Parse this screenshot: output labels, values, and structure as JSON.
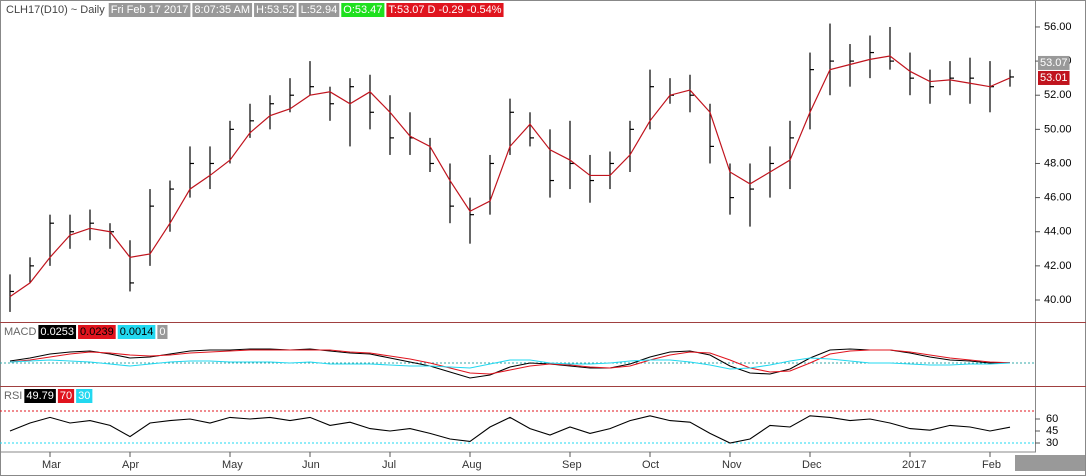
{
  "header": {
    "symbol": "CLH17(D10) ~ Daily",
    "date": "Fri Feb 17 2017",
    "time": "8:07:35 AM",
    "high": "H:53.52",
    "low": "L:52.94",
    "open": "O:53.47",
    "last": "T:53.07 D -0.29 -0.54%"
  },
  "chart_data": [
    {
      "type": "ohlc",
      "categories": [
        null,
        null,
        "Mar",
        null,
        null,
        null,
        "Apr",
        null,
        null,
        null,
        null,
        "May",
        null,
        null,
        null,
        "Jun",
        null,
        null,
        null,
        "Jul",
        null,
        null,
        null,
        "Aug",
        null,
        null,
        null,
        null,
        "Sep",
        null,
        null,
        null,
        "Oct",
        null,
        null,
        null,
        "Nov",
        null,
        null,
        null,
        "Dec",
        null,
        null,
        null,
        null,
        "2017",
        null,
        null,
        null,
        "Feb",
        null
      ],
      "high": [
        41.5,
        42.5,
        45,
        45,
        45.3,
        44.5,
        43.5,
        46.5,
        47,
        49,
        49,
        50.5,
        51.5,
        52,
        53,
        54,
        52.5,
        53,
        53.2,
        52,
        51,
        49.5,
        48,
        46,
        48.5,
        51.8,
        51,
        50,
        50.5,
        48.5,
        48.7,
        50.5,
        53.5,
        53,
        53.2,
        51.5,
        48,
        48,
        49,
        50.5,
        54.5,
        56.2,
        55,
        55.5,
        56,
        54.5,
        53.5,
        54,
        54.2,
        54,
        53.5
      ],
      "low": [
        39.3,
        41,
        42,
        43,
        43.5,
        43,
        40.5,
        42,
        44,
        46,
        46.5,
        48,
        49.5,
        50,
        51,
        52,
        50.5,
        49,
        50,
        48.5,
        48.5,
        47.5,
        44.5,
        43.3,
        45,
        48.5,
        49,
        46,
        46.5,
        45.7,
        46.5,
        47.5,
        50,
        51.5,
        51,
        48,
        45,
        44.3,
        46,
        46.5,
        50,
        52,
        52.5,
        53,
        53.5,
        52,
        51.5,
        52,
        51.5,
        51,
        52.5
      ],
      "close": [
        40.5,
        42,
        44.5,
        44,
        44.5,
        44,
        41,
        45.5,
        46.5,
        48,
        48,
        50,
        50.5,
        51.5,
        52,
        52.5,
        51.5,
        52.5,
        51,
        49.5,
        49.5,
        48,
        45.5,
        45,
        48,
        51,
        49.5,
        47,
        48,
        47,
        48,
        50,
        52.5,
        52,
        52,
        49,
        46,
        46.5,
        48,
        49.5,
        53.5,
        54,
        54,
        54.5,
        54,
        53,
        52.5,
        53,
        53,
        52.5,
        53.07
      ],
      "color": "#000000",
      "overlay": {
        "color": "#c0141e",
        "values": [
          40.2,
          41,
          42.5,
          43.8,
          44.2,
          44,
          42.5,
          42.7,
          44.5,
          46.5,
          47.3,
          48.2,
          49.8,
          50.8,
          51.2,
          52,
          52.2,
          51.5,
          52.2,
          51,
          49.6,
          49,
          47,
          45.2,
          45.8,
          49,
          50.3,
          48.8,
          48.2,
          47.3,
          47.3,
          48.5,
          50.5,
          52,
          52.3,
          51,
          47.5,
          46.8,
          47.5,
          48.2,
          51,
          53.5,
          53.8,
          54.1,
          54.3,
          53.4,
          52.8,
          52.9,
          52.7,
          52.5,
          53.01
        ]
      },
      "ylim": [
        38.71,
        57.58
      ],
      "yticks": [
        {
          "value": 40,
          "label": "40.00"
        },
        {
          "value": 42,
          "label": "42.00"
        },
        {
          "value": 44,
          "label": "44.00"
        },
        {
          "value": 46,
          "label": "46.00"
        },
        {
          "value": 48,
          "label": "48.00"
        },
        {
          "value": 50,
          "label": "50.00"
        },
        {
          "value": 52,
          "label": "52.00"
        },
        {
          "value": 54,
          "label": "54.00"
        },
        {
          "value": 56,
          "label": "56.00"
        }
      ]
    },
    {
      "type": "line",
      "title": "MACD",
      "series": [
        {
          "color": "#000000",
          "values": [
            0.2,
            0.5,
            0.9,
            1.1,
            1.2,
            0.9,
            0.5,
            0.6,
            0.9,
            1.2,
            1.3,
            1.3,
            1.4,
            1.4,
            1.3,
            1.4,
            1.2,
            1.0,
            0.9,
            0.5,
            0.1,
            -0.3,
            -0.9,
            -1.5,
            -1.2,
            -0.4,
            0.0,
            -0.1,
            -0.3,
            -0.5,
            -0.5,
            -0.1,
            0.6,
            1.1,
            1.2,
            0.8,
            -0.3,
            -1.0,
            -1.1,
            -0.6,
            0.5,
            1.3,
            1.4,
            1.3,
            1.3,
            1.0,
            0.6,
            0.3,
            0.2,
            0.0,
            0.0253
          ]
        },
        {
          "color": "#e0141e",
          "values": [
            0.1,
            0.3,
            0.6,
            0.9,
            1.1,
            1.0,
            0.8,
            0.7,
            0.8,
            1.0,
            1.1,
            1.2,
            1.3,
            1.3,
            1.3,
            1.3,
            1.3,
            1.1,
            1.0,
            0.7,
            0.4,
            0.0,
            -0.5,
            -1.0,
            -1.1,
            -0.7,
            -0.3,
            -0.1,
            -0.2,
            -0.4,
            -0.5,
            -0.3,
            0.3,
            0.8,
            1.1,
            1.0,
            0.3,
            -0.5,
            -0.9,
            -0.8,
            0.0,
            0.9,
            1.2,
            1.3,
            1.3,
            1.1,
            0.8,
            0.5,
            0.3,
            0.1,
            0.0239
          ]
        },
        {
          "color": "#22d8f0",
          "values": [
            0.1,
            0.2,
            0.3,
            0.2,
            0.1,
            -0.1,
            -0.3,
            -0.1,
            0.1,
            0.2,
            0.2,
            0.1,
            0.1,
            0.1,
            0.0,
            0.1,
            -0.1,
            -0.1,
            -0.1,
            -0.2,
            -0.3,
            -0.3,
            -0.4,
            -0.5,
            -0.1,
            0.3,
            0.3,
            0.0,
            -0.1,
            -0.1,
            0.0,
            0.2,
            0.3,
            0.3,
            0.1,
            -0.2,
            -0.6,
            -0.5,
            -0.2,
            0.2,
            0.5,
            0.4,
            0.2,
            0.0,
            0.0,
            -0.1,
            -0.2,
            -0.2,
            -0.1,
            -0.1,
            0.0014
          ]
        }
      ],
      "zero_line": 0,
      "ylim": [
        -2.3,
        4.1
      ]
    },
    {
      "type": "line",
      "title": "RSI",
      "series": [
        {
          "color": "#000000",
          "values": [
            45,
            55,
            62,
            55,
            58,
            52,
            38,
            55,
            58,
            60,
            55,
            62,
            60,
            62,
            58,
            62,
            52,
            56,
            48,
            45,
            48,
            42,
            35,
            32,
            50,
            62,
            48,
            40,
            50,
            42,
            48,
            58,
            64,
            58,
            56,
            42,
            30,
            35,
            52,
            50,
            64,
            62,
            58,
            60,
            55,
            48,
            46,
            52,
            50,
            45,
            49.79
          ]
        }
      ],
      "levels": [
        {
          "value": 70,
          "color": "#e0141e"
        },
        {
          "value": 30,
          "color": "#22d8f0"
        }
      ],
      "ylim": [
        18.75,
        101.25
      ],
      "yticks": [
        30,
        45,
        60
      ]
    }
  ]
}
